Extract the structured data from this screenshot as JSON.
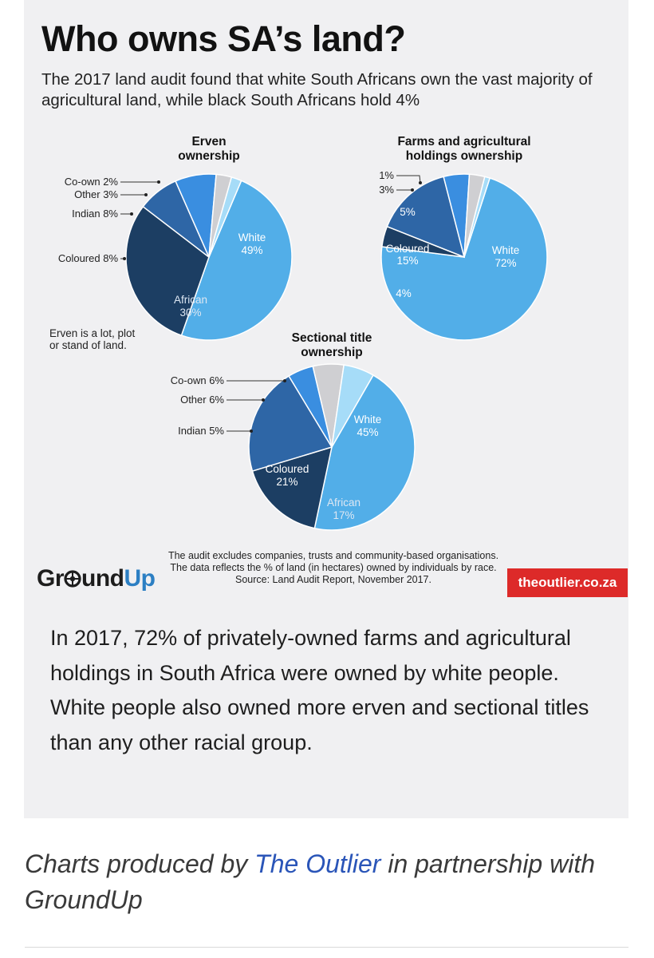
{
  "title": "Who owns SA’s land?",
  "subtitle": "The 2017 land audit found that white South Africans own the vast majority of agricultural land, while black South Africans hold 4%",
  "erven_note_line1": "Erven is a lot, plot",
  "erven_note_line2": "or stand of land.",
  "footer_note": "The audit excludes companies, trusts and community-based organisations. The data reflects the % of land (in hectares) owned by individuals by race. Source: Land Audit Report, November 2017.",
  "logo": {
    "part1": "Gr",
    "icon": "aperture-icon",
    "part2": "und",
    "part3": "Up"
  },
  "outlier_badge": "theoutlier.co.za",
  "body_text": "In 2017, 72% of privately-owned farms and agricultural holdings in South Africa were owned by white people. White people also owned more erven and sectional titles than any other racial group.",
  "caption": {
    "prefix": "Charts produced by ",
    "link_text": "The Outlier",
    "suffix": " in partnership with GroundUp"
  },
  "colors": {
    "White": "#52aee8",
    "African": "#1c3e63",
    "Coloured": "#2e66a6",
    "Indian": "#3a8ee0",
    "Other": "#cfcfd2",
    "Co-own": "#a6dcf8"
  },
  "chart_data": [
    {
      "type": "pie",
      "id": "erven",
      "title": [
        "Erven",
        "ownership"
      ],
      "slices": [
        {
          "label": "White",
          "value": 49,
          "display": "49%"
        },
        {
          "label": "African",
          "value": 30,
          "display": "30%"
        },
        {
          "label": "Coloured",
          "value": 8,
          "display": "Coloured 8%"
        },
        {
          "label": "Indian",
          "value": 8,
          "display": "Indian 8%"
        },
        {
          "label": "Other",
          "value": 3,
          "display": "Other 3%"
        },
        {
          "label": "Co-own",
          "value": 2,
          "display": "Co-own 2%"
        }
      ]
    },
    {
      "type": "pie",
      "id": "farms",
      "title": [
        "Farms and agricultural",
        "holdings ownership"
      ],
      "slices": [
        {
          "label": "White",
          "value": 72,
          "display": "72%"
        },
        {
          "label": "African",
          "value": 4,
          "display": "4%"
        },
        {
          "label": "Coloured",
          "value": 15,
          "display": "15%"
        },
        {
          "label": "Indian",
          "value": 5,
          "display": "5%"
        },
        {
          "label": "Other",
          "value": 3,
          "display": "3%"
        },
        {
          "label": "Co-own",
          "value": 1,
          "display": "1%"
        }
      ]
    },
    {
      "type": "pie",
      "id": "sectional",
      "title": [
        "Sectional title",
        "ownership"
      ],
      "slices": [
        {
          "label": "White",
          "value": 45,
          "display": "45%"
        },
        {
          "label": "African",
          "value": 17,
          "display": "17%"
        },
        {
          "label": "Coloured",
          "value": 21,
          "display": "21%"
        },
        {
          "label": "Indian",
          "value": 5,
          "display": "Indian 5%"
        },
        {
          "label": "Other",
          "value": 6,
          "display": "Other 6%"
        },
        {
          "label": "Co-own",
          "value": 6,
          "display": "Co-own 6%"
        }
      ]
    }
  ]
}
